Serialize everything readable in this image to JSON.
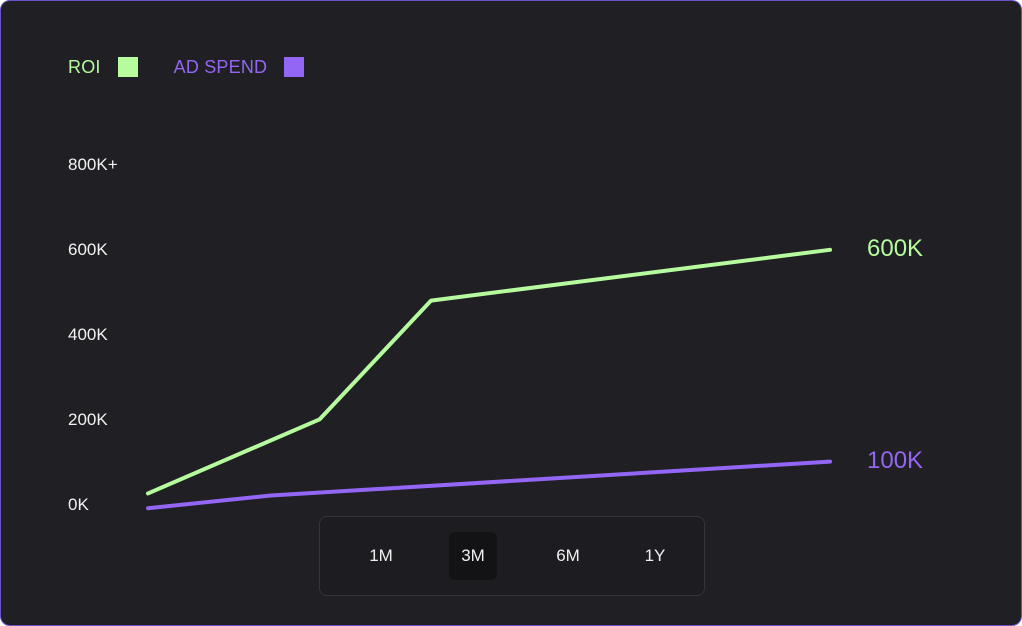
{
  "legend": {
    "roi_label": "ROI",
    "ad_spend_label": "AD SPEND"
  },
  "colors": {
    "roi": "#b6fb9e",
    "ad_spend": "#9466f5",
    "background": "#1f1f24",
    "border": "#6a4fc7"
  },
  "y_axis": {
    "ticks": [
      "800K+",
      "600K",
      "400K",
      "200K",
      "0K"
    ]
  },
  "end_labels": {
    "roi": "600K",
    "ad_spend": "100K"
  },
  "range_selector": {
    "options": [
      "1M",
      "3M",
      "6M",
      "1Y"
    ],
    "selected": "3M"
  },
  "chart_data": {
    "type": "line",
    "title": "",
    "xlabel": "",
    "ylabel": "",
    "ylim": [
      0,
      800000
    ],
    "x": [
      0,
      1,
      2,
      3
    ],
    "series": [
      {
        "name": "ROI",
        "color": "#b6fb9e",
        "points": [
          [
            0,
            25000
          ],
          [
            1.48,
            200000
          ],
          [
            2.44,
            480000
          ],
          [
            5.88,
            600000
          ]
        ]
      },
      {
        "name": "AD SPEND",
        "color": "#9466f5",
        "points": [
          [
            0,
            -10000
          ],
          [
            1.06,
            20000
          ],
          [
            5.88,
            100000
          ]
        ]
      }
    ],
    "grid": false,
    "legend_position": "top-left"
  }
}
